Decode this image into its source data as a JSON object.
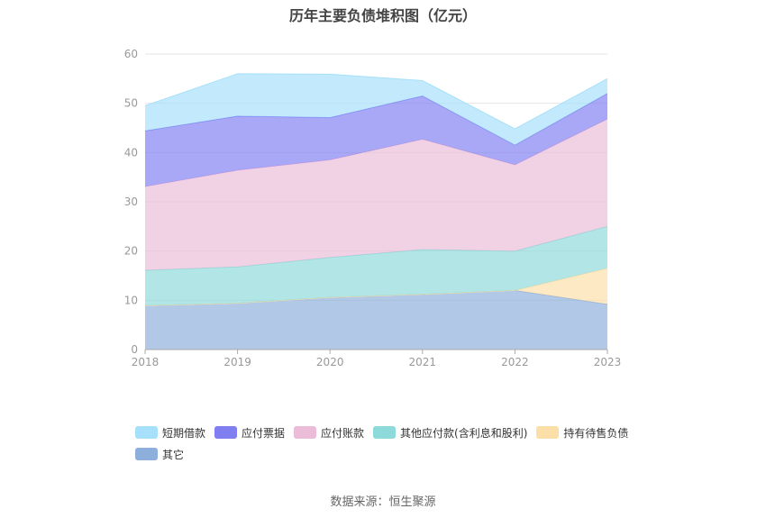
{
  "chart_data": {
    "type": "area",
    "title": "历年主要负债堆积图（亿元）",
    "x": [
      "2018",
      "2019",
      "2020",
      "2021",
      "2022",
      "2023"
    ],
    "ylim": [
      0,
      60
    ],
    "yticks": [
      0,
      10,
      20,
      30,
      40,
      50,
      60
    ],
    "grid": true,
    "legend_position": "bottom",
    "stacked": true,
    "series": [
      {
        "name": "其它",
        "color": "#8eaedc",
        "values": [
          8.9,
          9.4,
          10.6,
          11.2,
          12.0,
          9.2
        ]
      },
      {
        "name": "持有待售负债",
        "color": "#fcdfa8",
        "values": [
          0,
          0,
          0,
          0,
          0,
          7.3
        ]
      },
      {
        "name": "其他应付款(含利息和股利)",
        "color": "#8ed9d9",
        "values": [
          7.2,
          7.4,
          8.1,
          9.1,
          8.0,
          8.5
        ]
      },
      {
        "name": "应付账款",
        "color": "#ebbdd9",
        "values": [
          17.0,
          19.6,
          19.8,
          22.4,
          17.5,
          21.8
        ]
      },
      {
        "name": "应付票据",
        "color": "#7f7ff2",
        "values": [
          11.3,
          11.0,
          8.6,
          8.8,
          4.0,
          5.2
        ]
      },
      {
        "name": "短期借款",
        "color": "#a6e0fa",
        "values": [
          5.1,
          8.6,
          8.8,
          3.1,
          3.3,
          3.0
        ]
      }
    ],
    "legend_order": [
      "短期借款",
      "应付票据",
      "应付账款",
      "其他应付款(含利息和股利)",
      "持有待售负债",
      "其它"
    ]
  },
  "source_text": "数据来源：恒生聚源"
}
